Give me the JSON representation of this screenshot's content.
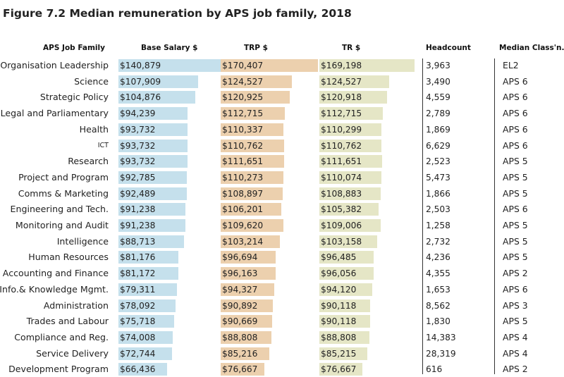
{
  "title": "Figure 7.2 Median remuneration by APS job family, 2018",
  "chart_data": {
    "type": "table",
    "title": "Figure 7.2 Median remuneration by APS job family, 2018",
    "columns": {
      "family": "APS Job Family",
      "base": "Base Salary $",
      "trp": "TRP $",
      "tr": "TR $",
      "headcount": "Headcount",
      "classification": "Median Class'n."
    },
    "colors": {
      "base": "#c5e0ec",
      "trp": "#ecd0ae",
      "tr": "#e5e6c6"
    },
    "rows": [
      {
        "family": "Organisation Leadership",
        "base": 140879,
        "trp": 170407,
        "tr": 169198,
        "base_label": "$140,879",
        "trp_label": "$170,407",
        "tr_label": "$169,198",
        "headcount": "3,963",
        "classification": "EL2"
      },
      {
        "family": "Science",
        "base": 107909,
        "trp": 124527,
        "tr": 124527,
        "base_label": "$107,909",
        "trp_label": "$124,527",
        "tr_label": "$124,527",
        "headcount": "3,490",
        "classification": "APS 6"
      },
      {
        "family": "Strategic Policy",
        "base": 104876,
        "trp": 120925,
        "tr": 120918,
        "base_label": "$104,876",
        "trp_label": "$120,925",
        "tr_label": "$120,918",
        "headcount": "4,559",
        "classification": "APS 6"
      },
      {
        "family": "Legal and Parliamentary",
        "base": 94239,
        "trp": 112715,
        "tr": 112715,
        "base_label": "$94,239",
        "trp_label": "$112,715",
        "tr_label": "$112,715",
        "headcount": "2,789",
        "classification": "APS 6"
      },
      {
        "family": "Health",
        "base": 93732,
        "trp": 110337,
        "tr": 110299,
        "base_label": "$93,732",
        "trp_label": "$110,337",
        "tr_label": "$110,299",
        "headcount": "1,869",
        "classification": "APS 6"
      },
      {
        "family": "ICT",
        "base": 93732,
        "trp": 110762,
        "tr": 110762,
        "base_label": "$93,732",
        "trp_label": "$110,762",
        "tr_label": "$110,762",
        "headcount": "6,629",
        "classification": "APS 6"
      },
      {
        "family": "Research",
        "base": 93732,
        "trp": 111651,
        "tr": 111651,
        "base_label": "$93,732",
        "trp_label": "$111,651",
        "tr_label": "$111,651",
        "headcount": "2,523",
        "classification": "APS 5"
      },
      {
        "family": "Project and Program",
        "base": 92785,
        "trp": 110273,
        "tr": 110074,
        "base_label": "$92,785",
        "trp_label": "$110,273",
        "tr_label": "$110,074",
        "headcount": "5,473",
        "classification": "APS 5"
      },
      {
        "family": "Comms & Marketing",
        "base": 92489,
        "trp": 108897,
        "tr": 108883,
        "base_label": "$92,489",
        "trp_label": "$108,897",
        "tr_label": "$108,883",
        "headcount": "1,866",
        "classification": "APS 5"
      },
      {
        "family": "Engineering and Tech.",
        "base": 91238,
        "trp": 106201,
        "tr": 105382,
        "base_label": "$91,238",
        "trp_label": "$106,201",
        "tr_label": "$105,382",
        "headcount": "2,503",
        "classification": "APS 6"
      },
      {
        "family": "Monitoring and Audit",
        "base": 91238,
        "trp": 109620,
        "tr": 109006,
        "base_label": "$91,238",
        "trp_label": "$109,620",
        "tr_label": "$109,006",
        "headcount": "1,258",
        "classification": "APS 5"
      },
      {
        "family": "Intelligence",
        "base": 88713,
        "trp": 103214,
        "tr": 103158,
        "base_label": "$88,713",
        "trp_label": "$103,214",
        "tr_label": "$103,158",
        "headcount": "2,732",
        "classification": "APS 5"
      },
      {
        "family": "Human Resources",
        "base": 81176,
        "trp": 96694,
        "tr": 96485,
        "base_label": "$81,176",
        "trp_label": "$96,694",
        "tr_label": "$96,485",
        "headcount": "4,236",
        "classification": "APS 5"
      },
      {
        "family": "Accounting and Finance",
        "base": 81172,
        "trp": 96163,
        "tr": 96056,
        "base_label": "$81,172",
        "trp_label": "$96,163",
        "tr_label": "$96,056",
        "headcount": "4,355",
        "classification": "APS 2"
      },
      {
        "family": "Info.& Knowledge Mgmt.",
        "base": 79311,
        "trp": 94327,
        "tr": 94120,
        "base_label": "$79,311",
        "trp_label": "$94,327",
        "tr_label": "$94,120",
        "headcount": "1,653",
        "classification": "APS 6"
      },
      {
        "family": "Administration",
        "base": 78092,
        "trp": 90892,
        "tr": 90118,
        "base_label": "$78,092",
        "trp_label": "$90,892",
        "tr_label": "$90,118",
        "headcount": "8,562",
        "classification": "APS 3"
      },
      {
        "family": "Trades and Labour",
        "base": 75718,
        "trp": 90669,
        "tr": 90118,
        "base_label": "$75,718",
        "trp_label": "$90,669",
        "tr_label": "$90,118",
        "headcount": "1,830",
        "classification": "APS 5"
      },
      {
        "family": "Compliance and Reg.",
        "base": 74008,
        "trp": 88808,
        "tr": 88808,
        "base_label": "$74,008",
        "trp_label": "$88,808",
        "tr_label": "$88,808",
        "headcount": "14,383",
        "classification": "APS 4"
      },
      {
        "family": "Service Delivery",
        "base": 72744,
        "trp": 85216,
        "tr": 85215,
        "base_label": "$72,744",
        "trp_label": "$85,216",
        "tr_label": "$85,215",
        "headcount": "28,319",
        "classification": "APS 4"
      },
      {
        "family": "Development Program",
        "base": 66436,
        "trp": 76667,
        "tr": 76667,
        "base_label": "$66,436",
        "trp_label": "$76,667",
        "tr_label": "$76,667",
        "headcount": "616",
        "classification": "APS 2"
      }
    ]
  }
}
